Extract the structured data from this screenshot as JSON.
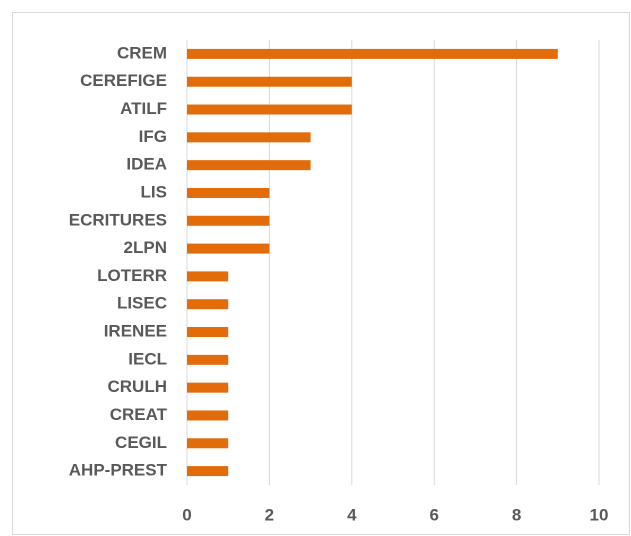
{
  "chart_data": {
    "type": "barh",
    "categories": [
      "CREM",
      "CEREFIGE",
      "ATILF",
      "IFG",
      "IDEA",
      "LIS",
      "ECRITURES",
      "2LPN",
      "LOTERR",
      "LISEC",
      "IRENEE",
      "IECL",
      "CRULH",
      "CREAT",
      "CEGIL",
      "AHP-PREST"
    ],
    "values": [
      9,
      4,
      4,
      3,
      3,
      2,
      2,
      2,
      1,
      1,
      1,
      1,
      1,
      1,
      1,
      1
    ],
    "color": "#e36c0a",
    "xlim": [
      0,
      10
    ],
    "xticks": [
      0,
      2,
      4,
      6,
      8,
      10
    ],
    "grid": true
  }
}
